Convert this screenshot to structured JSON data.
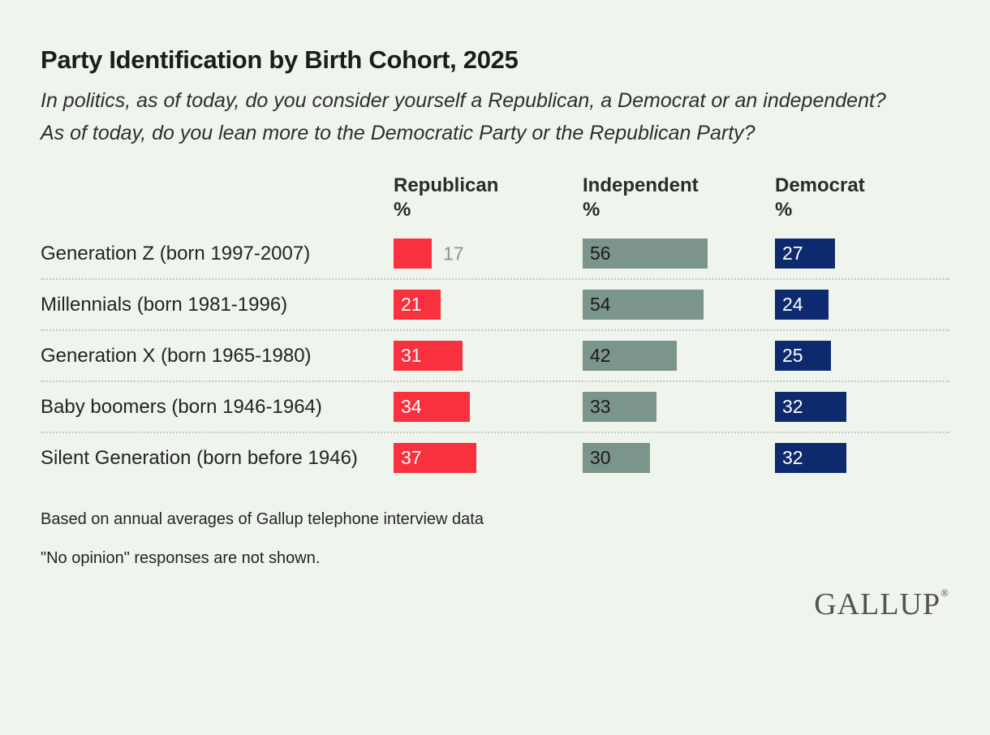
{
  "colors": {
    "background": "#eff5ed",
    "separator": "#c3cabf",
    "outside_value_label": "#8d928c",
    "logo": "#55534c"
  },
  "header": {
    "title": "Party Identification by Birth Cohort, 2025",
    "question_1": "In politics, as of today, do you consider yourself a Republican, a Democrat or an independent?",
    "question_2": "As of today, do you lean more to the Democratic Party or the Republican Party?"
  },
  "chart_data": {
    "type": "bar",
    "orientation": "horizontal",
    "title": "Party Identification by Birth Cohort, 2025",
    "categories": [
      "Generation Z (born 1997-2007)",
      "Millennials (born 1981-1996)",
      "Generation X (born 1965-1980)",
      "Baby boomers (born 1946-1964)",
      "Silent Generation (born before 1946)"
    ],
    "series": [
      {
        "name": "Republican",
        "unit": "%",
        "color": "#f9303e",
        "value_label_color": "#ffffff",
        "values": [
          17,
          21,
          31,
          34,
          37
        ]
      },
      {
        "name": "Independent",
        "unit": "%",
        "color": "#7b948c",
        "value_label_color": "#1b1b1b",
        "values": [
          56,
          54,
          42,
          33,
          30
        ]
      },
      {
        "name": "Democrat",
        "unit": "%",
        "color": "#0e2a6e",
        "value_label_color": "#ffffff",
        "values": [
          27,
          24,
          25,
          32,
          32
        ]
      }
    ],
    "value_axis_range": [
      0,
      60
    ],
    "value_labels_shown": true,
    "gridlines": false,
    "legend_position": "column-headers"
  },
  "footer": {
    "source": "Based on annual averages of Gallup telephone interview data",
    "note": "\"No opinion\" responses are not shown.",
    "logo_text": "GALLUP",
    "logo_mark": "®"
  }
}
